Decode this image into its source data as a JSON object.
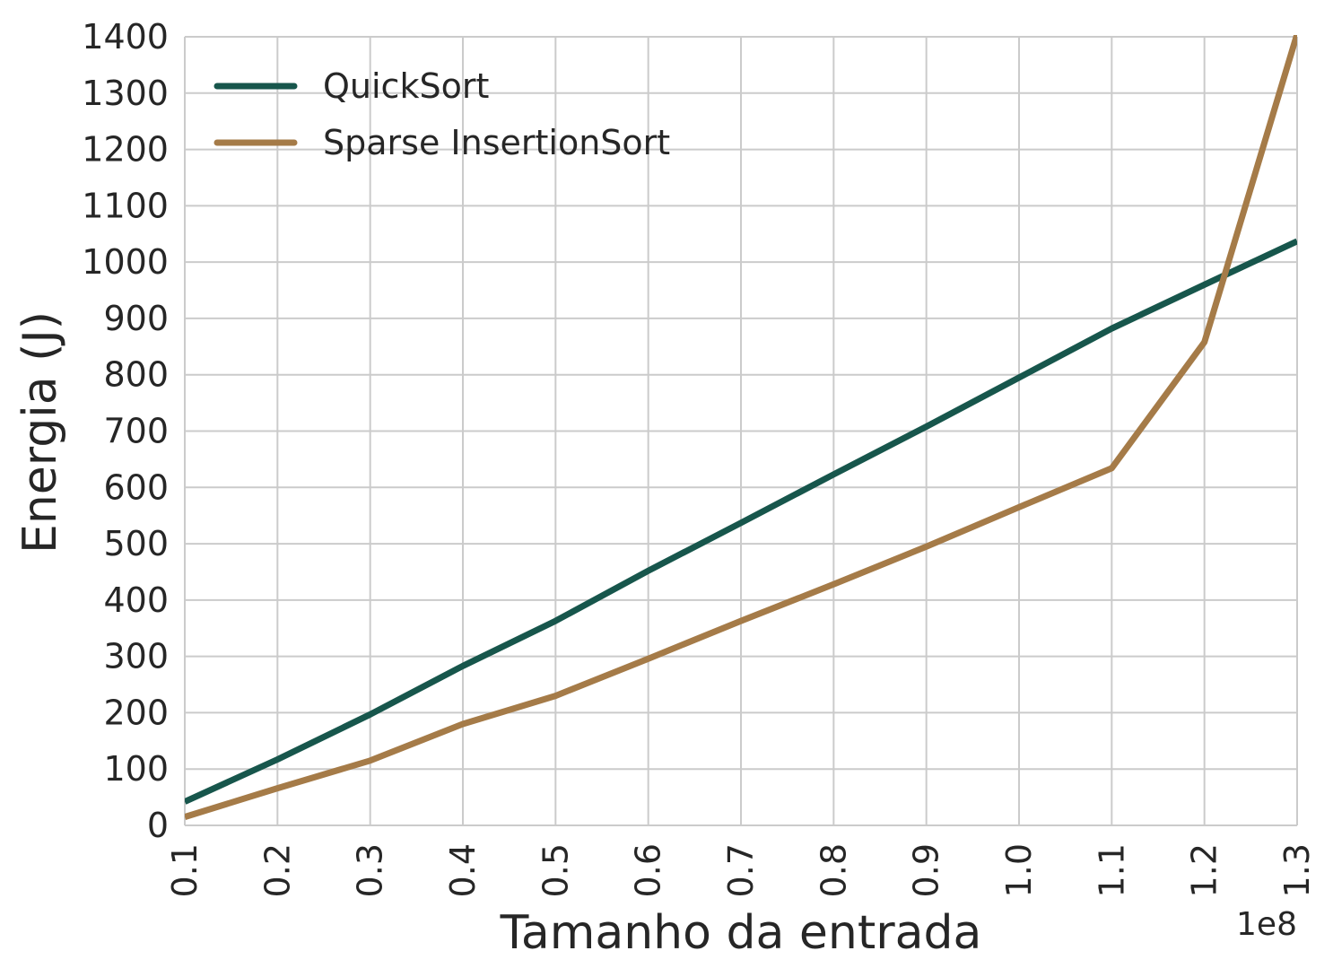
{
  "chart_data": {
    "type": "line",
    "title": "",
    "xlabel": "Tamanho da entrada",
    "ylabel": "Energia (J)",
    "x_offset_label": "1e8",
    "x": [
      0.1,
      0.2,
      0.3,
      0.4,
      0.5,
      0.6,
      0.7,
      0.8,
      0.9,
      1.0,
      1.1,
      1.2,
      1.3
    ],
    "x_ticks": [
      "0.1",
      "0.2",
      "0.3",
      "0.4",
      "0.5",
      "0.6",
      "0.7",
      "0.8",
      "0.9",
      "1.0",
      "1.1",
      "1.2",
      "1.3"
    ],
    "xlim": [
      0.1,
      1.3
    ],
    "y_ticks": [
      "0",
      "100",
      "200",
      "300",
      "400",
      "500",
      "600",
      "700",
      "800",
      "900",
      "1000",
      "1100",
      "1200",
      "1300",
      "1400"
    ],
    "ylim": [
      0,
      1400
    ],
    "grid": true,
    "legend_position": "top-left",
    "series": [
      {
        "name": "QuickSort",
        "color": "#17564c",
        "values": [
          42,
          117,
          197,
          283,
          363,
          452,
          537,
          623,
          708,
          795,
          882,
          960,
          1037
        ]
      },
      {
        "name": "Sparse InsertionSort",
        "color": "#a57b48",
        "values": [
          15,
          66,
          115,
          180,
          230,
          296,
          363,
          428,
          495,
          565,
          634,
          858,
          1405
        ]
      }
    ]
  }
}
